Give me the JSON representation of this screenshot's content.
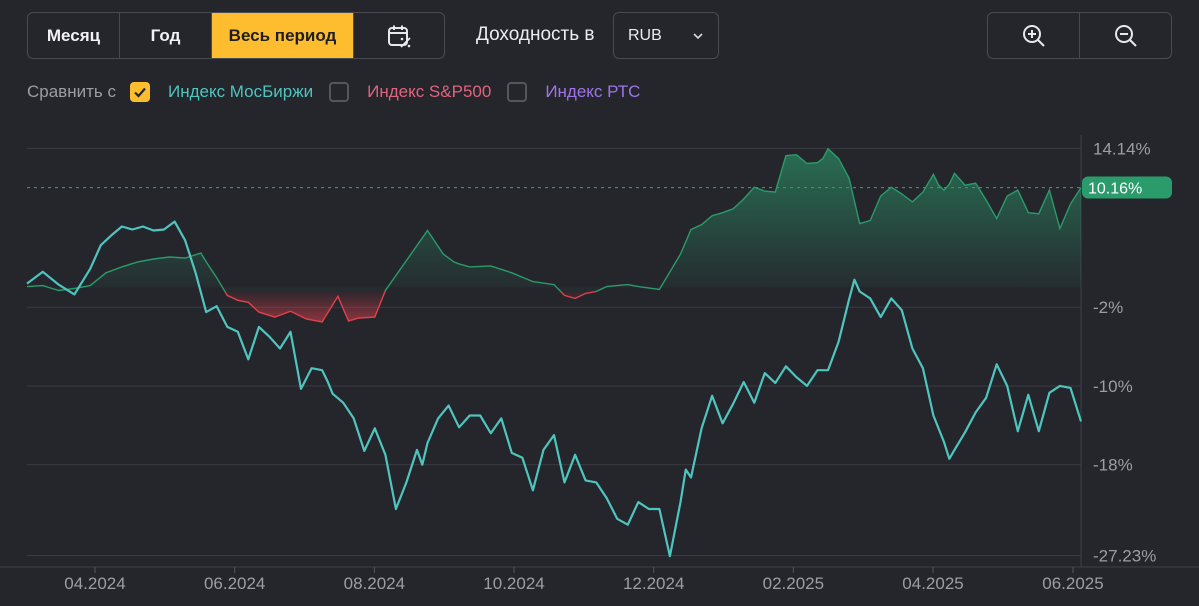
{
  "periods": {
    "month": "Месяц",
    "year": "Год",
    "all": "Весь период"
  },
  "calendar_icon": "calendar-percent-icon",
  "yield": {
    "label": "Доходность в",
    "currency": "RUB"
  },
  "zoom": {
    "in_icon": "zoom-in-icon",
    "out_icon": "zoom-out-icon"
  },
  "compare": {
    "label": "Сравнить с",
    "indices": [
      {
        "label": "Индекс МосБиржи",
        "checked": true,
        "color": "#4ec5be"
      },
      {
        "label": "Индекс S&P500",
        "checked": false,
        "color": "#e0647d"
      },
      {
        "label": "Индекс РТС",
        "checked": false,
        "color": "#9e74e8"
      }
    ]
  },
  "colors": {
    "accent": "#fdbd2e",
    "positive": "#2a9b6b",
    "negative": "#e0414b",
    "index_line": "#4ec5be",
    "background": "#25252c"
  },
  "chart_data": {
    "type": "line",
    "x_ticks": [
      "04.2024",
      "06.2024",
      "08.2024",
      "10.2024",
      "12.2024",
      "02.2025",
      "04.2025",
      "06.2025"
    ],
    "y_ticks": [
      "14.14%",
      "-2%",
      "-10%",
      "-18%",
      "-27.23%"
    ],
    "y_tick_values": [
      14.14,
      -2,
      -10,
      -18,
      -27.23
    ],
    "ylim": [
      -28.5,
      15.5
    ],
    "current_value_label": "10.16%",
    "current_value": 10.16,
    "series": [
      {
        "role": "portfolio",
        "x": [
          0,
          0.015,
          0.03,
          0.045,
          0.06,
          0.075,
          0.09,
          0.105,
          0.12,
          0.135,
          0.15,
          0.165,
          0.17,
          0.18,
          0.19,
          0.2,
          0.21,
          0.22,
          0.235,
          0.25,
          0.265,
          0.28,
          0.295,
          0.305,
          0.315,
          0.33,
          0.34,
          0.38,
          0.395,
          0.405,
          0.41,
          0.42,
          0.44,
          0.46,
          0.48,
          0.5,
          0.51,
          0.52,
          0.53,
          0.54,
          0.55,
          0.56,
          0.57,
          0.58,
          0.6,
          0.62,
          0.63,
          0.64,
          0.65,
          0.66,
          0.67,
          0.68,
          0.69,
          0.7,
          0.71,
          0.72,
          0.73,
          0.74,
          0.75,
          0.755,
          0.76,
          0.77,
          0.78,
          0.79,
          0.8,
          0.81,
          0.82,
          0.83,
          0.84,
          0.85,
          0.86,
          0.865,
          0.87,
          0.875,
          0.88,
          0.89,
          0.9,
          0.91,
          0.92,
          0.93,
          0.94,
          0.95,
          0.96,
          0.97,
          0.98,
          0.99,
          1.0
        ],
        "y": [
          0.1,
          0.2,
          -0.3,
          -0.1,
          0.2,
          1.5,
          2.1,
          2.6,
          2.9,
          3.1,
          3.0,
          3.5,
          2.6,
          1.0,
          -0.8,
          -1.3,
          -1.5,
          -2.5,
          -3.0,
          -2.4,
          -3.2,
          -3.5,
          -0.9,
          -3.4,
          -3.1,
          -3.0,
          -0.3,
          5.8,
          3.4,
          2.6,
          2.4,
          2.1,
          2.2,
          1.5,
          0.6,
          0.3,
          -0.8,
          -1.1,
          -0.6,
          -0.4,
          0.1,
          0.2,
          0.3,
          0.1,
          -0.2,
          3.4,
          5.9,
          6.4,
          7.3,
          7.6,
          8.0,
          9.0,
          10.2,
          9.8,
          9.7,
          13.4,
          13.5,
          12.6,
          12.7,
          13.1,
          14.1,
          13.1,
          11.1,
          6.5,
          6.8,
          9.3,
          10.2,
          9.5,
          8.7,
          9.7,
          11.5,
          10.4,
          9.9,
          10.5,
          11.6,
          10.4,
          10.6,
          8.9,
          7.0,
          9.3,
          9.9,
          7.6,
          7.5,
          9.9,
          6.0,
          8.5,
          10.16
        ]
      },
      {
        "role": "index",
        "name": "Индекс МосБиржи",
        "x": [
          0,
          0.015,
          0.03,
          0.045,
          0.06,
          0.07,
          0.08,
          0.09,
          0.1,
          0.11,
          0.12,
          0.13,
          0.14,
          0.15,
          0.16,
          0.17,
          0.18,
          0.19,
          0.2,
          0.21,
          0.22,
          0.23,
          0.24,
          0.25,
          0.26,
          0.27,
          0.28,
          0.285,
          0.29,
          0.3,
          0.31,
          0.32,
          0.33,
          0.34,
          0.35,
          0.36,
          0.37,
          0.375,
          0.38,
          0.39,
          0.4,
          0.41,
          0.42,
          0.43,
          0.44,
          0.45,
          0.46,
          0.47,
          0.48,
          0.49,
          0.5,
          0.51,
          0.52,
          0.53,
          0.54,
          0.55,
          0.56,
          0.57,
          0.58,
          0.59,
          0.6,
          0.61,
          0.62,
          0.625,
          0.63,
          0.64,
          0.65,
          0.66,
          0.67,
          0.68,
          0.69,
          0.7,
          0.71,
          0.72,
          0.73,
          0.74,
          0.75,
          0.76,
          0.77,
          0.78,
          0.785,
          0.79,
          0.8,
          0.81,
          0.82,
          0.83,
          0.84,
          0.85,
          0.86,
          0.87,
          0.875,
          0.88,
          0.89,
          0.9,
          0.91,
          0.92,
          0.93,
          0.94,
          0.95,
          0.96,
          0.97,
          0.98,
          0.99,
          1.0
        ],
        "y": [
          0.4,
          1.6,
          0.3,
          -0.7,
          1.9,
          4.3,
          5.3,
          6.2,
          5.9,
          6.2,
          5.8,
          5.9,
          6.7,
          4.8,
          1.5,
          -2.5,
          -1.9,
          -4.0,
          -4.5,
          -7.3,
          -4.0,
          -5.0,
          -6.2,
          -4.5,
          -10.3,
          -8.2,
          -8.4,
          -9.5,
          -10.8,
          -11.7,
          -13.3,
          -16.6,
          -14.3,
          -17.0,
          -22.5,
          -19.8,
          -16.5,
          -18.0,
          -15.8,
          -13.3,
          -12.0,
          -14.2,
          -13.0,
          -13.0,
          -14.8,
          -13.3,
          -16.8,
          -17.3,
          -20.6,
          -16.5,
          -15.0,
          -19.8,
          -17.0,
          -19.6,
          -19.8,
          -21.4,
          -23.5,
          -24.1,
          -21.8,
          -22.5,
          -22.5,
          -27.3,
          -21.8,
          -18.5,
          -19.3,
          -14.3,
          -11.0,
          -13.8,
          -11.8,
          -9.6,
          -11.7,
          -8.7,
          -9.7,
          -8.0,
          -9.1,
          -10.0,
          -8.4,
          -8.4,
          -5.5,
          -1.2,
          0.8,
          -0.4,
          -1.1,
          -3.0,
          -1.1,
          -2.3,
          -6.2,
          -8.2,
          -13.0,
          -15.7,
          -17.4,
          -16.5,
          -14.7,
          -12.7,
          -11.2,
          -7.8,
          -10.0,
          -14.6,
          -10.9,
          -14.6,
          -10.7,
          -10.0,
          -10.2,
          -13.6
        ]
      }
    ]
  }
}
